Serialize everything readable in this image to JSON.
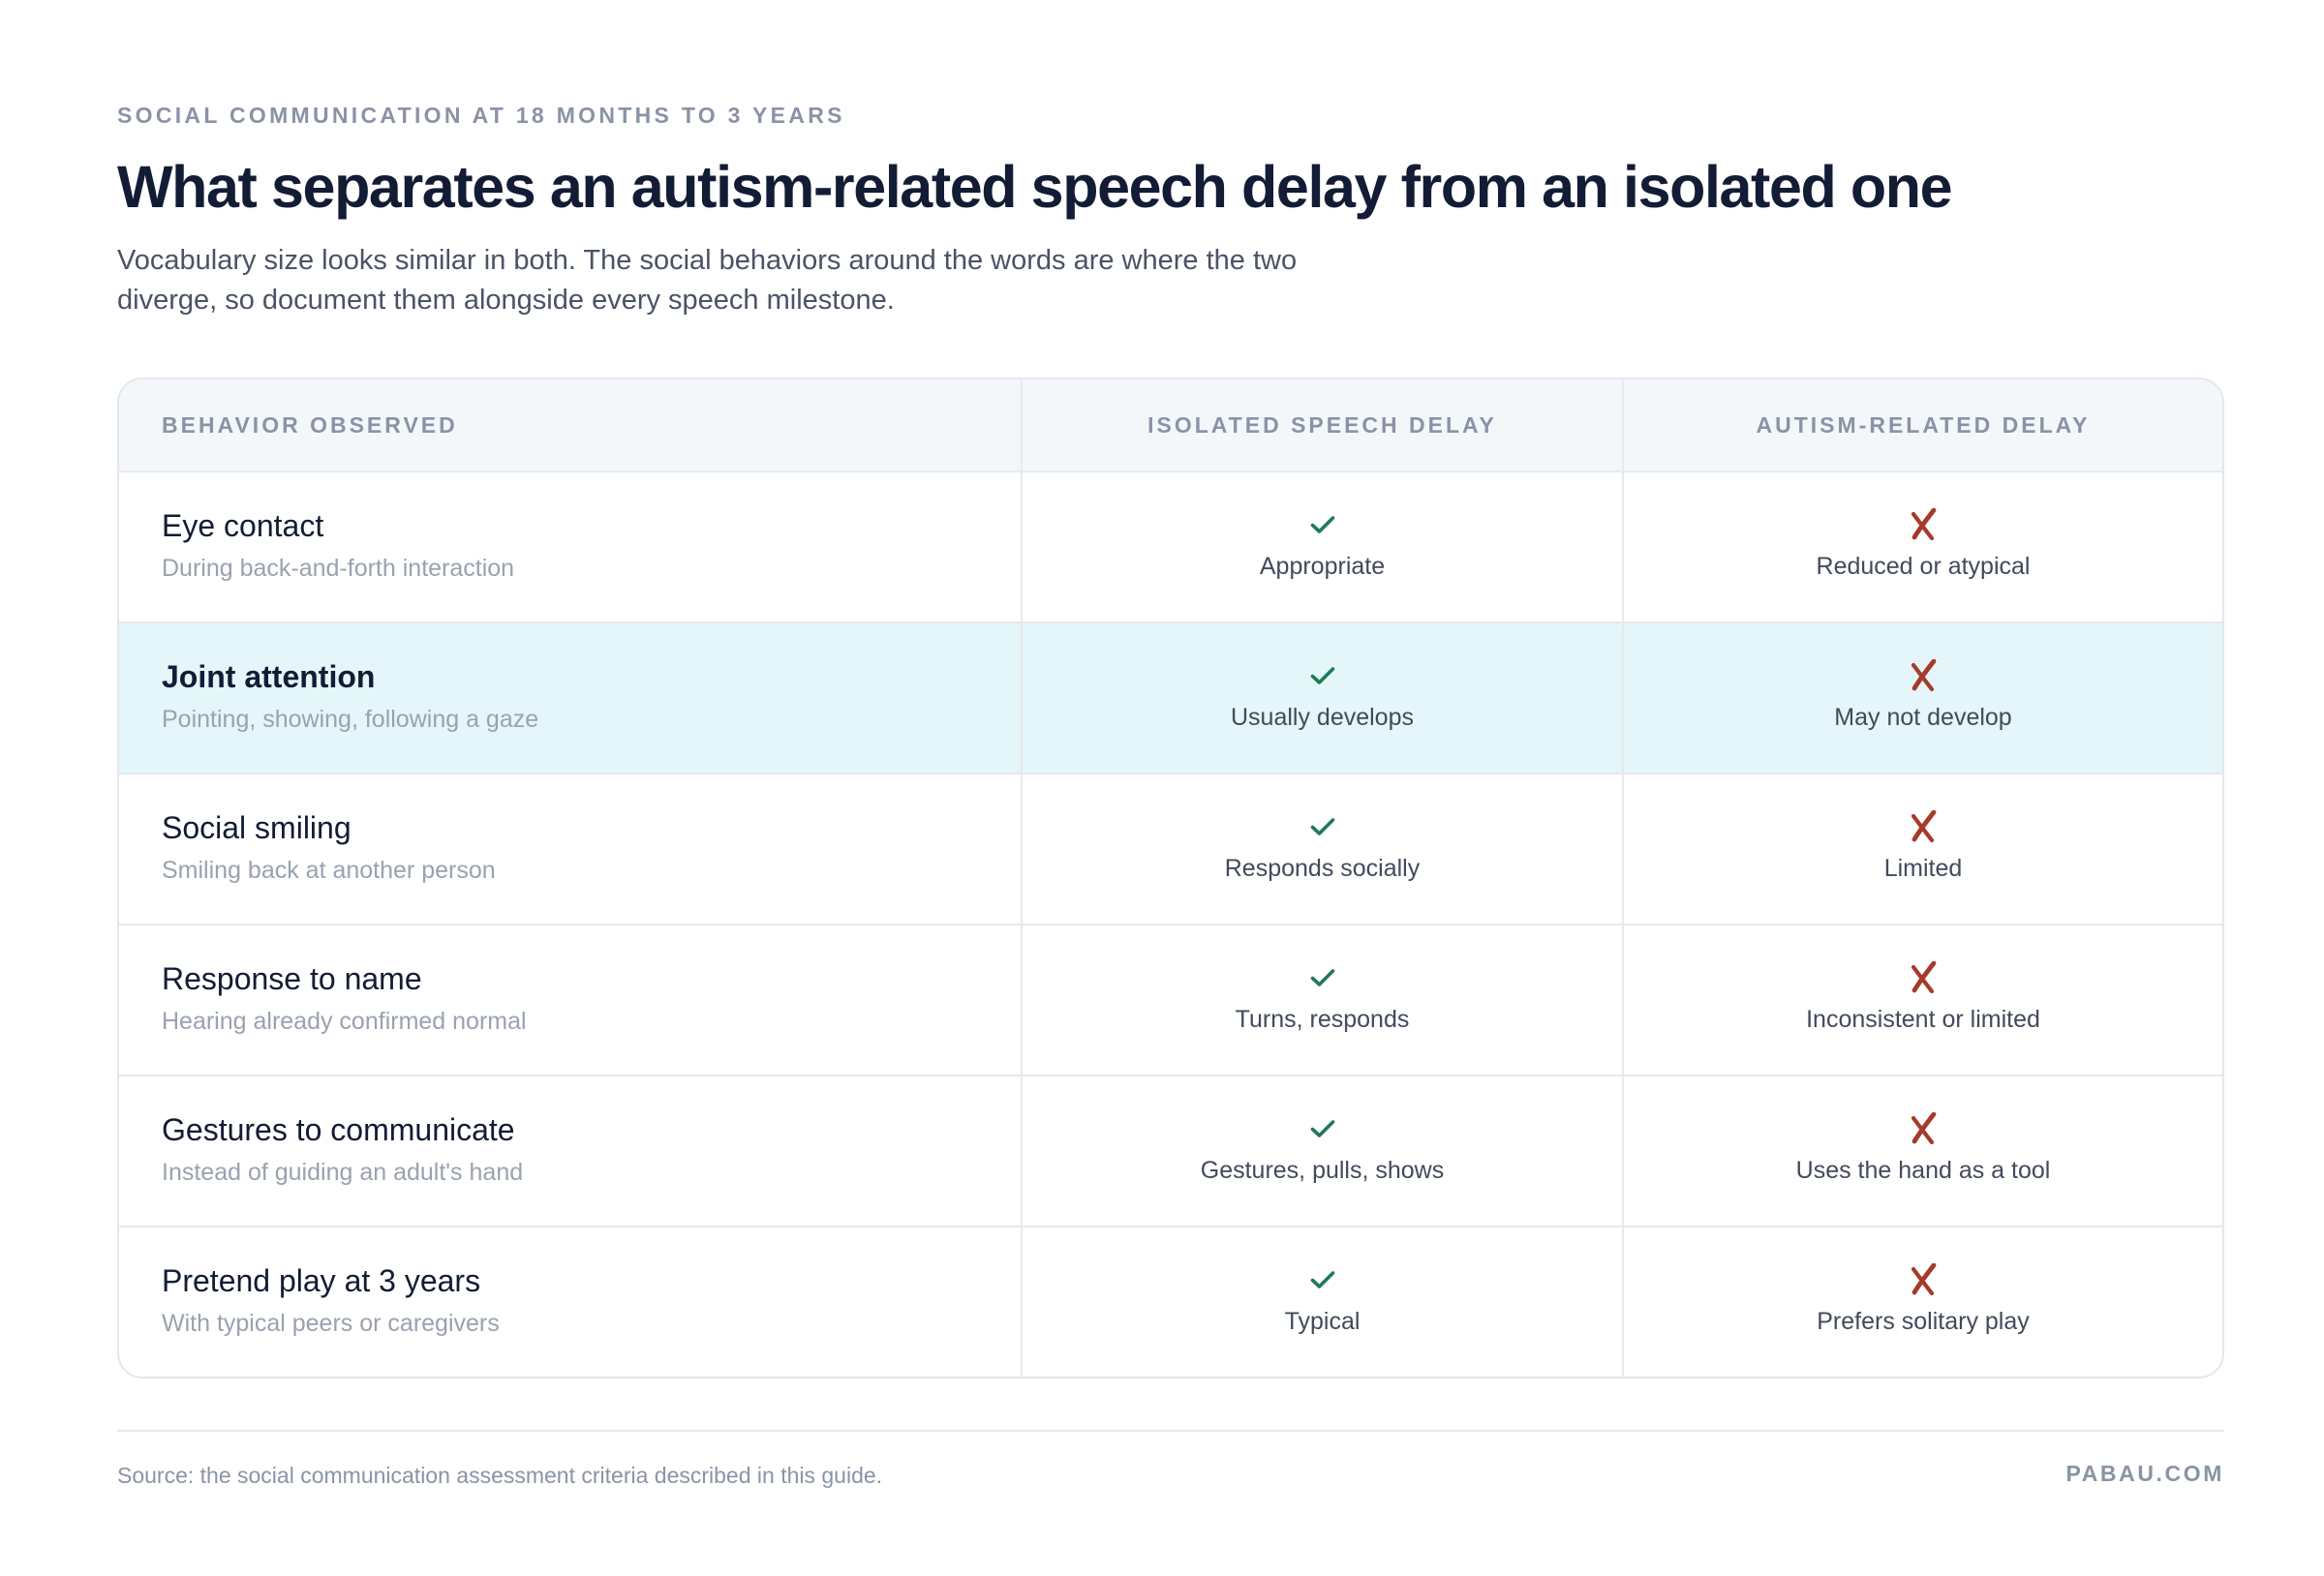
{
  "header": {
    "eyebrow": "SOCIAL COMMUNICATION AT 18 MONTHS TO 3 YEARS",
    "title": "What separates an autism-related speech delay from an isolated one",
    "subtitle": "Vocabulary size looks similar in both. The social behaviors around the words are where the two diverge, so document them alongside every speech milestone."
  },
  "table": {
    "columns": [
      "BEHAVIOR OBSERVED",
      "ISOLATED SPEECH DELAY",
      "AUTISM-RELATED DELAY"
    ],
    "rows": [
      {
        "behavior": "Eye contact",
        "detail": "During back-and-forth interaction",
        "isolated": "Appropriate",
        "autism": "Reduced or atypical",
        "highlighted": false
      },
      {
        "behavior": "Joint attention",
        "detail": "Pointing, showing, following a gaze",
        "isolated": "Usually develops",
        "autism": "May not develop",
        "highlighted": true
      },
      {
        "behavior": "Social smiling",
        "detail": "Smiling back at another person",
        "isolated": "Responds socially",
        "autism": "Limited",
        "highlighted": false
      },
      {
        "behavior": "Response to name",
        "detail": "Hearing already confirmed normal",
        "isolated": "Turns, responds",
        "autism": "Inconsistent or limited",
        "highlighted": false
      },
      {
        "behavior": "Gestures to communicate",
        "detail": "Instead of guiding an adult's hand",
        "isolated": "Gestures, pulls, shows",
        "autism": "Uses the hand as a tool",
        "highlighted": false
      },
      {
        "behavior": "Pretend play at 3 years",
        "detail": "With typical peers or caregivers",
        "isolated": "Typical",
        "autism": "Prefers solitary play",
        "highlighted": false
      }
    ],
    "icons": {
      "isolated": "check-icon",
      "autism": "cross-icon"
    },
    "colors": {
      "check": "#1f7a55",
      "cross": "#a63a2a",
      "highlight": "#e4f6fa"
    }
  },
  "footer": {
    "source": "Source: the social communication assessment criteria described in this guide.",
    "brand": "PABAU.COM"
  }
}
